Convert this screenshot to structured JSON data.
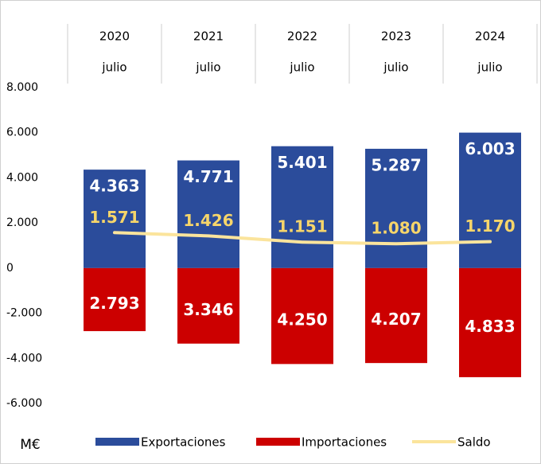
{
  "chart_data": {
    "type": "bar",
    "categories": [
      "2020",
      "2021",
      "2022",
      "2023",
      "2024"
    ],
    "category_sublabels": [
      "julio",
      "julio",
      "julio",
      "julio",
      "julio"
    ],
    "unit_label": "M€",
    "series": [
      {
        "name": "Exportaciones",
        "color": "#2b4c9b",
        "values": [
          4363,
          4771,
          5401,
          5287,
          6003
        ],
        "value_labels": [
          "4.363",
          "4.771",
          "5.401",
          "5.287",
          "6.003"
        ]
      },
      {
        "name": "Importaciones",
        "color": "#cc0000",
        "values": [
          -2793,
          -3346,
          -4250,
          -4207,
          -4833
        ],
        "value_labels": [
          "2.793",
          "3.346",
          "4.250",
          "4.207",
          "4.833"
        ]
      },
      {
        "name": "Saldo",
        "type": "line",
        "color": "#fbe49c",
        "values": [
          1571,
          1426,
          1151,
          1080,
          1170
        ],
        "value_labels": [
          "1.571",
          "1.426",
          "1.151",
          "1.080",
          "1.170"
        ]
      }
    ],
    "ylim": [
      -6000,
      8000
    ],
    "yticks": [
      {
        "value": 8000,
        "label": "8.000"
      },
      {
        "value": 6000,
        "label": "6.000"
      },
      {
        "value": 4000,
        "label": "4.000"
      },
      {
        "value": 2000,
        "label": "2.000"
      },
      0,
      {
        "value": -2000,
        "label": "-2.000"
      },
      {
        "value": -4000,
        "label": "-4.000"
      },
      {
        "value": -6000,
        "label": "-6.000"
      }
    ],
    "legend": "bottom"
  }
}
